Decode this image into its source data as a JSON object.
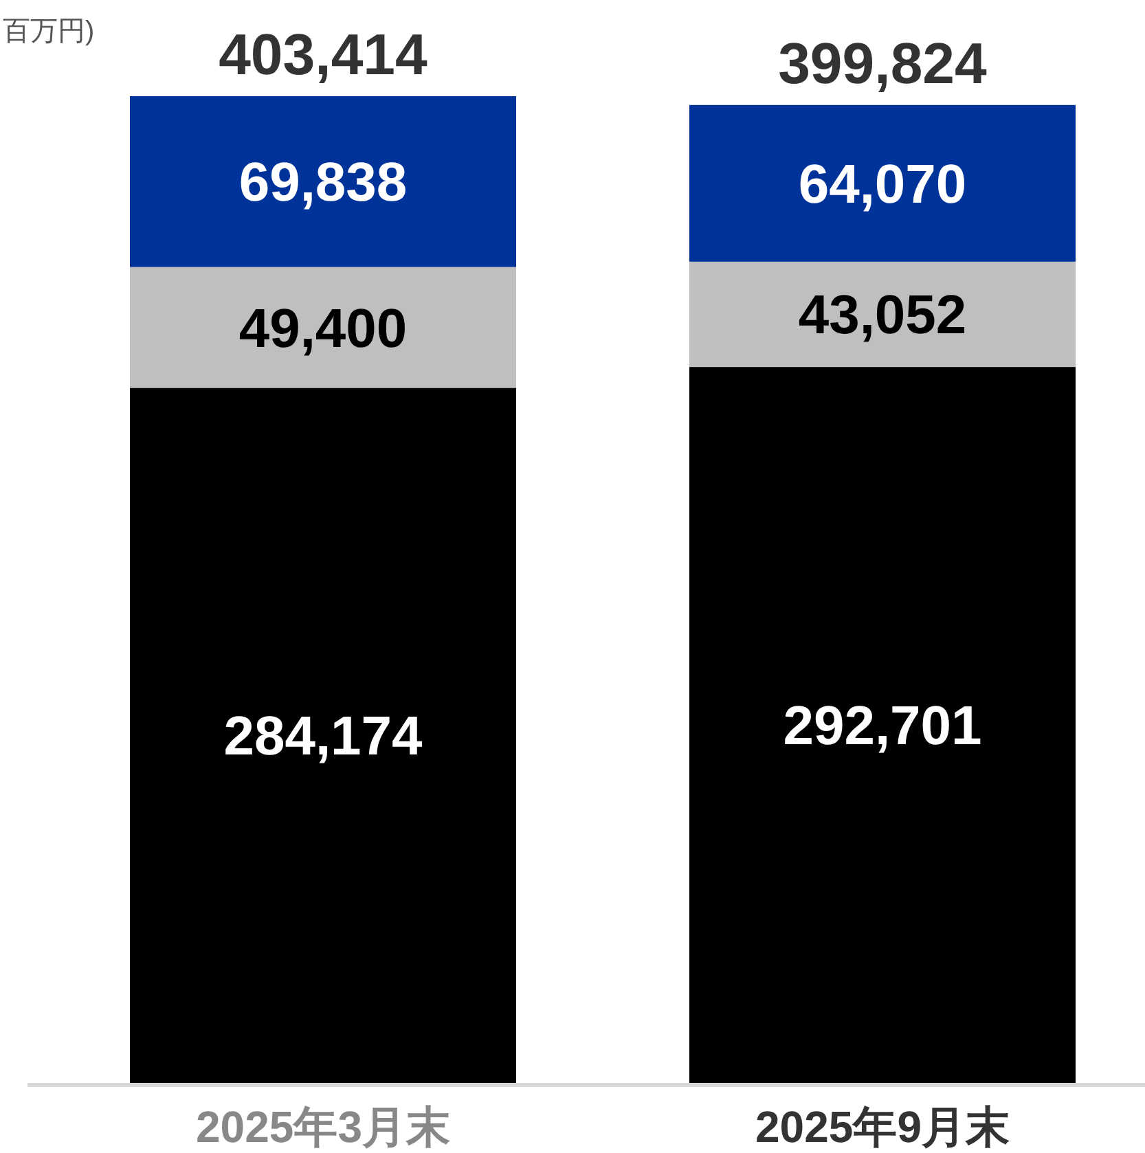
{
  "chart_data": {
    "type": "bar",
    "stacked": true,
    "ylabel": "百万円)",
    "categories": [
      "2025年3月末",
      "2025年9月末"
    ],
    "series": [
      {
        "color": "#000000",
        "values": [
          284174,
          292701
        ],
        "value_labels": [
          "284,174",
          "292,701"
        ]
      },
      {
        "color": "#bfbfbf",
        "values": [
          49400,
          43052
        ],
        "value_labels": [
          "49,400",
          "43,052"
        ]
      },
      {
        "color": "#003399",
        "values": [
          69838,
          64070
        ],
        "value_labels": [
          "69,838",
          "64,070"
        ]
      }
    ],
    "totals": [
      "403,414",
      "399,824"
    ]
  }
}
